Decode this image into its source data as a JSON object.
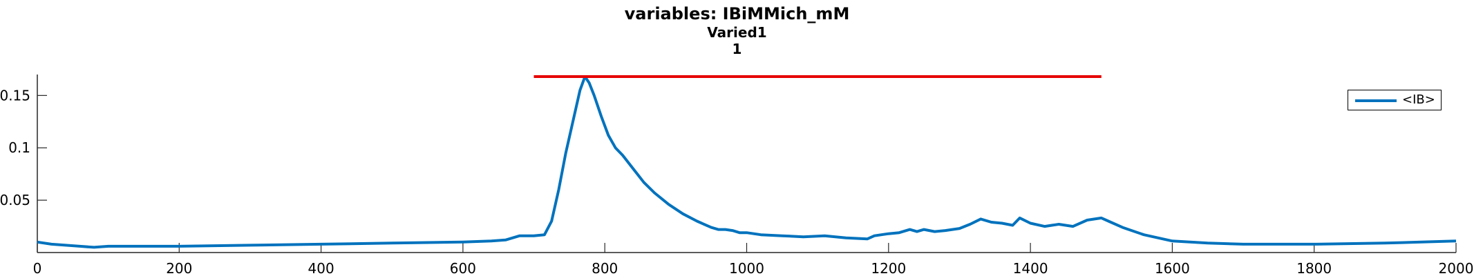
{
  "figure": {
    "title_lines": [
      "variables: IBiMMich_mM",
      "Varied1",
      "1"
    ]
  },
  "chart_data": {
    "type": "line",
    "title": "variables: IBiMMich_mM",
    "subtitle": [
      "Varied1",
      "1"
    ],
    "xlabel": "",
    "ylabel": "",
    "xlim": [
      0,
      2000
    ],
    "ylim": [
      0,
      0.17
    ],
    "xticks": [
      0,
      200,
      400,
      600,
      800,
      1000,
      1200,
      1400,
      1600,
      1800,
      2000
    ],
    "yticks": [
      0.05,
      0.1,
      0.15
    ],
    "ytick_labels": [
      "0.05",
      "0.1",
      "0.15"
    ],
    "grid": false,
    "legend_position": "top-right",
    "series": [
      {
        "name": "<IB>",
        "color": "#0072BD",
        "x": [
          0,
          20,
          40,
          60,
          80,
          100,
          150,
          200,
          300,
          400,
          500,
          600,
          640,
          660,
          680,
          700,
          715,
          725,
          735,
          745,
          755,
          765,
          772,
          778,
          785,
          795,
          805,
          815,
          825,
          840,
          855,
          870,
          890,
          910,
          930,
          950,
          960,
          970,
          980,
          990,
          1000,
          1020,
          1050,
          1080,
          1110,
          1140,
          1170,
          1180,
          1200,
          1215,
          1230,
          1240,
          1250,
          1265,
          1280,
          1300,
          1315,
          1330,
          1345,
          1360,
          1375,
          1385,
          1400,
          1420,
          1440,
          1460,
          1480,
          1500,
          1510,
          1530,
          1560,
          1600,
          1650,
          1700,
          1800,
          1900,
          2000
        ],
        "values": [
          0.01,
          0.008,
          0.007,
          0.006,
          0.005,
          0.006,
          0.006,
          0.006,
          0.007,
          0.008,
          0.009,
          0.01,
          0.011,
          0.012,
          0.016,
          0.016,
          0.017,
          0.03,
          0.06,
          0.095,
          0.125,
          0.155,
          0.168,
          0.162,
          0.15,
          0.13,
          0.112,
          0.1,
          0.093,
          0.08,
          0.067,
          0.057,
          0.046,
          0.037,
          0.03,
          0.024,
          0.022,
          0.022,
          0.021,
          0.019,
          0.019,
          0.017,
          0.016,
          0.015,
          0.016,
          0.014,
          0.013,
          0.016,
          0.018,
          0.019,
          0.022,
          0.02,
          0.022,
          0.02,
          0.021,
          0.023,
          0.027,
          0.032,
          0.029,
          0.028,
          0.026,
          0.033,
          0.028,
          0.025,
          0.027,
          0.025,
          0.031,
          0.033,
          0.03,
          0.024,
          0.017,
          0.011,
          0.009,
          0.008,
          0.008,
          0.009,
          0.011
        ]
      },
      {
        "color": "#E60000",
        "x": [
          700,
          1500
        ],
        "values": [
          0.168,
          0.168
        ]
      }
    ]
  }
}
